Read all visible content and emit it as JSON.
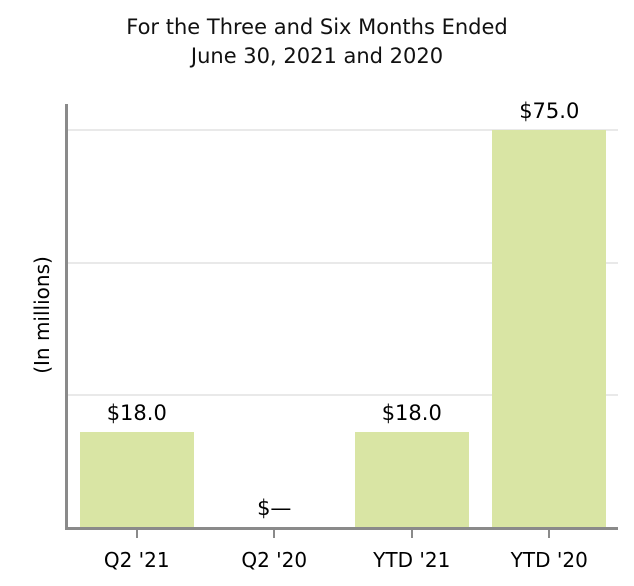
{
  "title": {
    "line1": "For the Three and Six Months Ended",
    "line2": "June 30, 2021 and 2020"
  },
  "chart_data": {
    "type": "bar",
    "title": "For the Three and Six Months Ended June 30, 2021 and 2020",
    "categories": [
      "Q2 '21",
      "Q2 '20",
      "YTD '21",
      "YTD '20"
    ],
    "values": [
      18.0,
      0,
      18.0,
      75.0
    ],
    "data_labels": [
      "$18.0",
      "$—",
      "$18.0",
      "$75.0"
    ],
    "xlabel": "",
    "ylabel": "(In millions)",
    "ylim": [
      0,
      80
    ],
    "y_gridlines": [
      25,
      50,
      75
    ],
    "grid": true,
    "legend": "none",
    "y_tick_labels_visible": false,
    "colors": {
      "bar_fill": "#d9e5a4",
      "gridline": "#e9e9e9",
      "axis": "#8a8a8a",
      "text": "#000000",
      "background": "#ffffff"
    }
  }
}
